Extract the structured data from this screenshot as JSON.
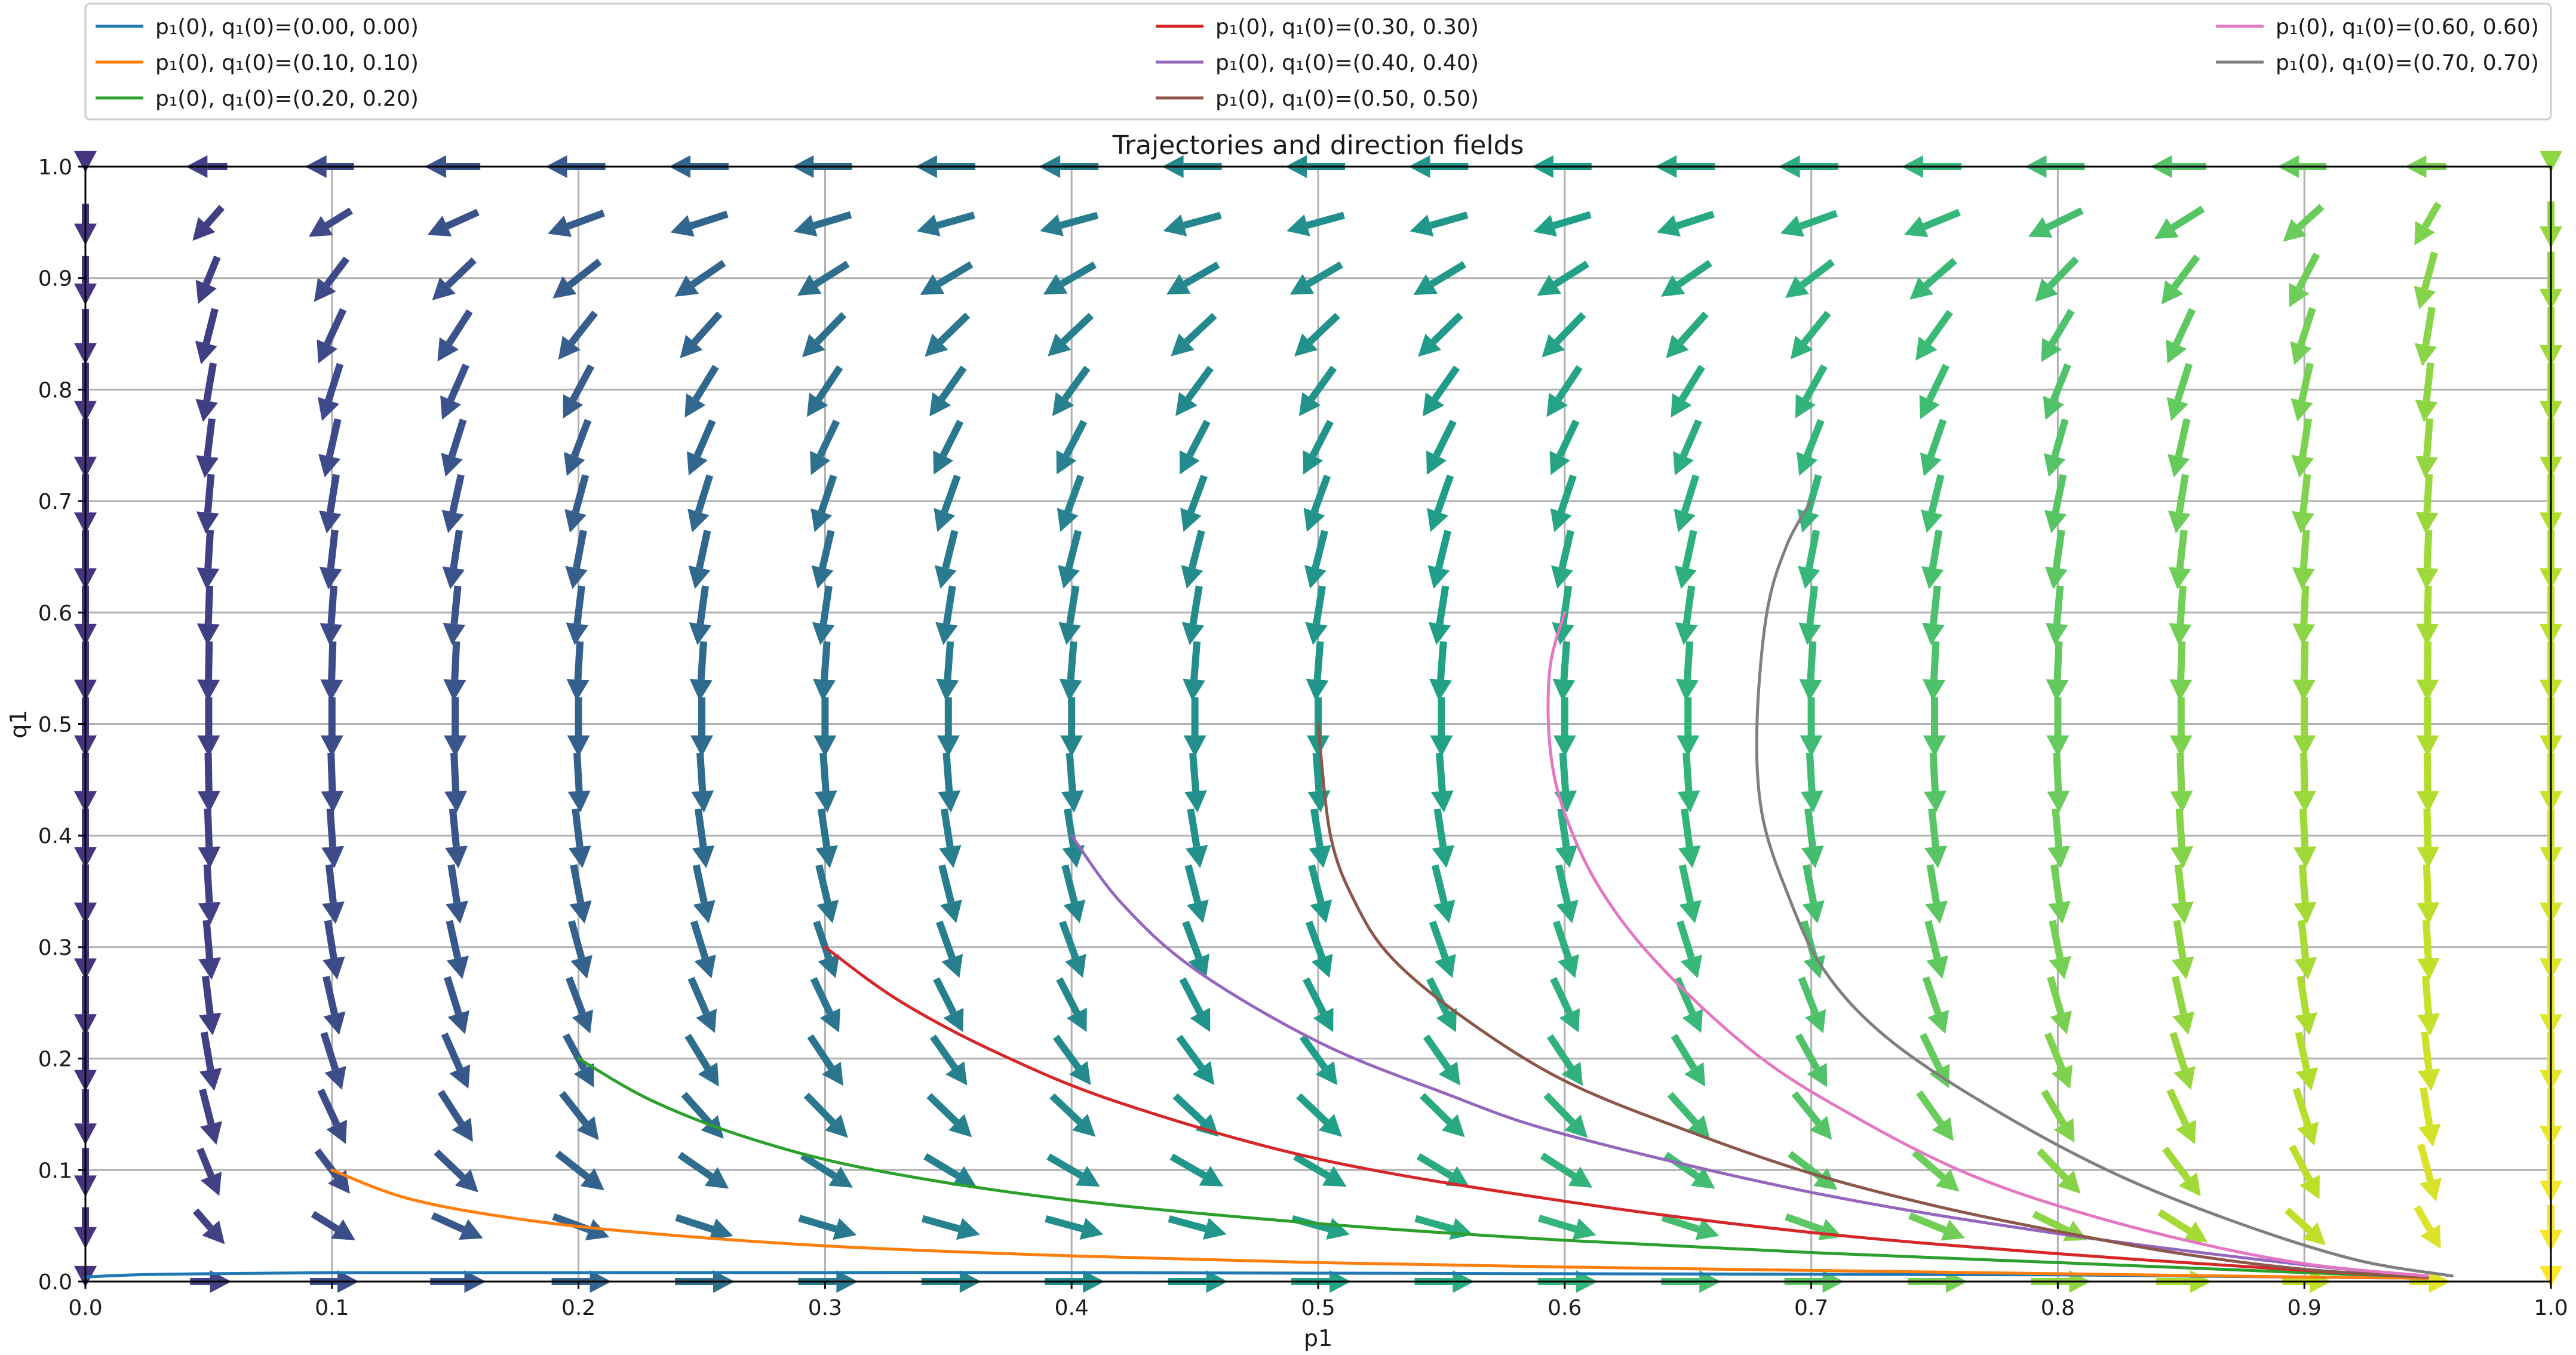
{
  "chart_data": {
    "type": "line",
    "title": "Trajectories and direction fields",
    "xlabel": "p1",
    "ylabel": "q1",
    "xlim": [
      0.0,
      1.0
    ],
    "ylim": [
      0.0,
      1.0
    ],
    "grid": true,
    "legend_placement": "top, outside plot, 3 columns",
    "xticks": [
      "0.0",
      "0.1",
      "0.2",
      "0.3",
      "0.4",
      "0.5",
      "0.6",
      "0.7",
      "0.8",
      "0.9",
      "1.0"
    ],
    "yticks": [
      "0.0",
      "0.1",
      "0.2",
      "0.3",
      "0.4",
      "0.5",
      "0.6",
      "0.7",
      "0.8",
      "0.9",
      "1.0"
    ],
    "direction_field": {
      "type": "quiver",
      "colormap": "viridis",
      "grid_x": [
        0.0,
        0.05,
        0.1,
        0.15,
        0.2,
        0.25,
        0.3,
        0.35,
        0.4,
        0.45,
        0.5,
        0.55,
        0.6,
        0.65,
        0.7,
        0.75,
        0.8,
        0.85,
        0.9,
        0.95,
        1.0
      ],
      "grid_y": [
        0.0,
        0.05,
        0.1,
        0.15,
        0.2,
        0.25,
        0.3,
        0.35,
        0.4,
        0.45,
        0.5,
        0.55,
        0.6,
        0.65,
        0.7,
        0.75,
        0.8,
        0.85,
        0.9,
        0.95,
        1.0
      ]
    },
    "series": [
      {
        "name": "p₁(0), q₁(0)=(0.00, 0.00)",
        "color": "#1f77b4",
        "x": [
          0.0,
          0.02,
          0.05,
          0.1,
          0.2,
          0.4,
          0.6,
          0.8,
          0.9,
          0.95
        ],
        "y": [
          0.004,
          0.006,
          0.007,
          0.008,
          0.008,
          0.008,
          0.007,
          0.006,
          0.004,
          0.003
        ]
      },
      {
        "name": "p₁(0), q₁(0)=(0.10, 0.10)",
        "color": "#ff7f0e",
        "x": [
          0.1,
          0.13,
          0.17,
          0.22,
          0.3,
          0.4,
          0.5,
          0.6,
          0.7,
          0.8,
          0.9,
          0.95
        ],
        "y": [
          0.1,
          0.075,
          0.058,
          0.045,
          0.032,
          0.023,
          0.017,
          0.013,
          0.01,
          0.007,
          0.004,
          0.003
        ]
      },
      {
        "name": "p₁(0), q₁(0)=(0.20, 0.20)",
        "color": "#2ca02c",
        "x": [
          0.2,
          0.23,
          0.27,
          0.32,
          0.4,
          0.5,
          0.6,
          0.7,
          0.8,
          0.9,
          0.95
        ],
        "y": [
          0.2,
          0.162,
          0.128,
          0.1,
          0.073,
          0.052,
          0.037,
          0.026,
          0.017,
          0.008,
          0.004
        ]
      },
      {
        "name": "p₁(0), q₁(0)=(0.30, 0.30)",
        "color": "#d62728",
        "x": [
          0.3,
          0.33,
          0.37,
          0.42,
          0.5,
          0.6,
          0.7,
          0.8,
          0.9,
          0.95
        ],
        "y": [
          0.3,
          0.252,
          0.205,
          0.16,
          0.11,
          0.072,
          0.044,
          0.025,
          0.01,
          0.004
        ]
      },
      {
        "name": "p₁(0), q₁(0)=(0.40, 0.40)",
        "color": "#9467bd",
        "x": [
          0.4,
          0.42,
          0.45,
          0.5,
          0.55,
          0.6,
          0.7,
          0.8,
          0.9,
          0.95
        ],
        "y": [
          0.4,
          0.34,
          0.28,
          0.215,
          0.17,
          0.132,
          0.08,
          0.043,
          0.015,
          0.005
        ]
      },
      {
        "name": "p₁(0), q₁(0)=(0.50, 0.50)",
        "color": "#8c564b",
        "x": [
          0.5,
          0.505,
          0.515,
          0.53,
          0.56,
          0.6,
          0.65,
          0.7,
          0.75,
          0.8,
          0.85,
          0.9,
          0.95
        ],
        "y": [
          0.5,
          0.4,
          0.34,
          0.29,
          0.235,
          0.18,
          0.135,
          0.097,
          0.068,
          0.045,
          0.025,
          0.011,
          0.004
        ]
      },
      {
        "name": "p₁(0), q₁(0)=(0.60, 0.60)",
        "color": "#e377c2",
        "x": [
          0.6,
          0.594,
          0.594,
          0.6,
          0.615,
          0.64,
          0.68,
          0.72,
          0.76,
          0.8,
          0.85,
          0.9,
          0.95
        ],
        "y": [
          0.6,
          0.55,
          0.48,
          0.42,
          0.35,
          0.28,
          0.2,
          0.145,
          0.1,
          0.068,
          0.038,
          0.016,
          0.005
        ]
      },
      {
        "name": "p₁(0), q₁(0)=(0.70, 0.70)",
        "color": "#7f7f7f",
        "x": [
          0.7,
          0.69,
          0.682,
          0.678,
          0.68,
          0.69,
          0.705,
          0.73,
          0.77,
          0.82,
          0.87,
          0.92,
          0.96
        ],
        "y": [
          0.7,
          0.66,
          0.6,
          0.5,
          0.42,
          0.35,
          0.28,
          0.22,
          0.16,
          0.1,
          0.055,
          0.02,
          0.005
        ]
      }
    ]
  }
}
